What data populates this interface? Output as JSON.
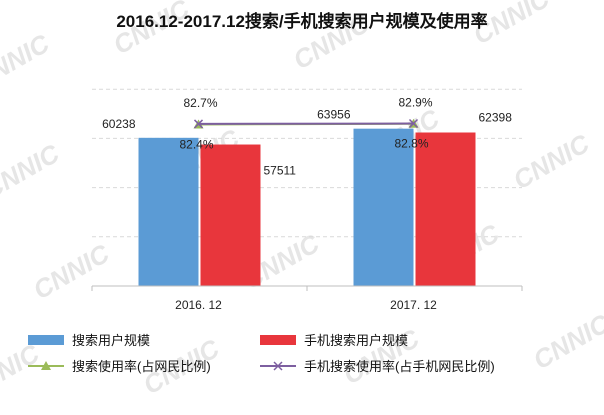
{
  "watermark": "CNNIC",
  "chart_data": {
    "type": "bar",
    "title": "2016.12-2017.12搜索/手机搜索用户规模及使用率",
    "categories": [
      "2016. 12",
      "2017. 12"
    ],
    "series": [
      {
        "name": "搜索用户规模",
        "kind": "bar",
        "color": "#5b9bd5",
        "values": [
          60238,
          63956
        ]
      },
      {
        "name": "手机搜索用户规模",
        "kind": "bar",
        "color": "#e8363c",
        "values": [
          57511,
          62398
        ]
      },
      {
        "name": "搜索使用率(占网民比例)",
        "kind": "line",
        "marker": "triangle",
        "color": "#9bbb59",
        "values": [
          82.4,
          82.8
        ],
        "labels": [
          "82.4%",
          "82.8%"
        ]
      },
      {
        "name": "手机搜索使用率(占手机网民比例)",
        "kind": "line",
        "marker": "x",
        "color": "#7d5fa0",
        "values": [
          82.7,
          82.9
        ],
        "labels": [
          "82.7%",
          "82.9%"
        ]
      }
    ],
    "ylim": [
      0,
      100000
    ],
    "rate_ylim": [
      0,
      100
    ],
    "grid": true,
    "legend": "bottom"
  }
}
